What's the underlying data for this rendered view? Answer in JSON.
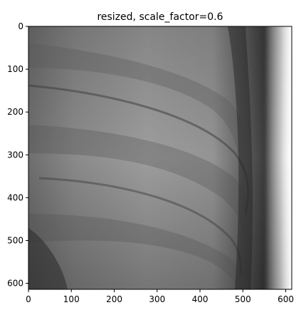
{
  "chart_data": {
    "type": "heatmap",
    "title": "resized, scale_factor=0.6",
    "xlabel": "",
    "ylabel": "",
    "xlim": [
      0,
      614
    ],
    "ylim": [
      614,
      0
    ],
    "x_ticks": [
      0,
      100,
      200,
      300,
      400,
      500,
      600
    ],
    "y_ticks": [
      0,
      100,
      200,
      300,
      400,
      500,
      600
    ],
    "x_tick_labels": [
      "0",
      "100",
      "200",
      "300",
      "400",
      "500",
      "600"
    ],
    "y_tick_labels": [
      "0",
      "100",
      "200",
      "300",
      "400",
      "500",
      "600"
    ],
    "colormap": "gray",
    "grid": false,
    "content": "grayscale chest X-ray crop showing curved rib shadows"
  }
}
